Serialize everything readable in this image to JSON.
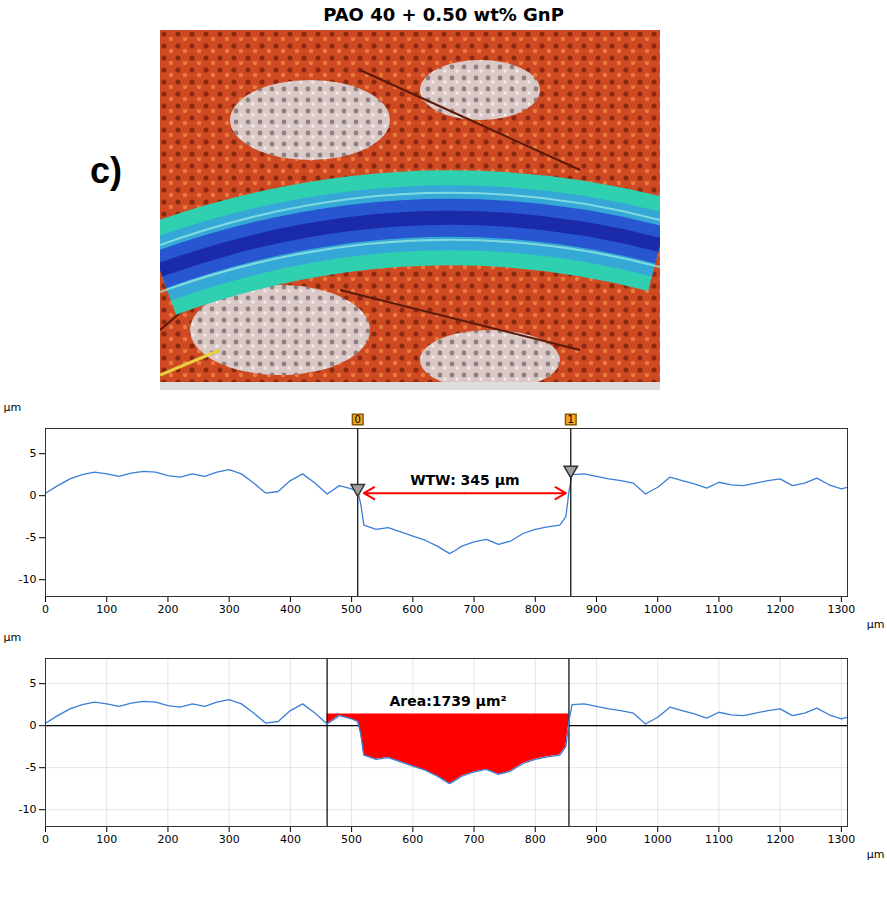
{
  "title": "PAO 40 + 0.50 wt% GnP",
  "panel": "c)",
  "chart_data": [
    {
      "type": "line",
      "x_label": "µm",
      "y_label": "µm",
      "color": "#3a7fd5",
      "grid": false,
      "xlim": [
        0,
        1310
      ],
      "ylim": [
        -12,
        8
      ],
      "xticks": [
        0,
        100,
        200,
        300,
        400,
        500,
        600,
        700,
        800,
        900,
        1000,
        1100,
        1200,
        1300
      ],
      "yticks": [
        -10,
        -5,
        0,
        5
      ],
      "x": [
        0,
        20,
        40,
        60,
        80,
        100,
        120,
        140,
        160,
        180,
        200,
        220,
        240,
        260,
        280,
        300,
        320,
        340,
        360,
        380,
        400,
        420,
        440,
        460,
        480,
        500,
        510,
        515,
        520,
        540,
        560,
        580,
        600,
        620,
        640,
        660,
        670,
        680,
        700,
        720,
        740,
        760,
        780,
        800,
        820,
        840,
        850,
        855,
        860,
        880,
        900,
        920,
        940,
        960,
        980,
        1000,
        1020,
        1040,
        1060,
        1080,
        1100,
        1120,
        1140,
        1160,
        1180,
        1200,
        1220,
        1240,
        1260,
        1280,
        1300,
        1310
      ],
      "values": [
        0.3,
        1.2,
        2.0,
        2.5,
        2.8,
        2.6,
        2.3,
        2.7,
        2.9,
        2.8,
        2.4,
        2.2,
        2.6,
        2.3,
        2.8,
        3.1,
        2.6,
        1.5,
        0.3,
        0.5,
        1.8,
        2.6,
        1.5,
        0.2,
        1.2,
        0.8,
        0.5,
        -1.0,
        -3.5,
        -4.0,
        -3.8,
        -4.3,
        -4.8,
        -5.3,
        -6.0,
        -6.9,
        -6.5,
        -6.0,
        -5.5,
        -5.2,
        -5.8,
        -5.4,
        -4.5,
        -4.0,
        -3.7,
        -3.5,
        -2.5,
        0.5,
        2.5,
        2.6,
        2.3,
        2.0,
        1.8,
        1.5,
        0.2,
        1.0,
        2.2,
        1.8,
        1.4,
        0.9,
        1.6,
        1.3,
        1.2,
        1.5,
        1.8,
        2.0,
        1.2,
        1.5,
        2.1,
        1.3,
        0.8,
        1.0
      ],
      "cursors": [
        {
          "label": "0",
          "x": 510,
          "y": 0.5
        },
        {
          "label": "1",
          "x": 858,
          "y": 2.7
        }
      ],
      "annotation": {
        "text": "WTW: 345 µm",
        "x0": 520,
        "x1": 850,
        "y": 0.3,
        "color": "#ff0000"
      }
    },
    {
      "type": "line",
      "x_label": "µm",
      "y_label": "µm",
      "color": "#3a7fd5",
      "grid": true,
      "xlim": [
        0,
        1310
      ],
      "ylim": [
        -12,
        8
      ],
      "xticks": [
        0,
        100,
        200,
        300,
        400,
        500,
        600,
        700,
        800,
        900,
        1000,
        1100,
        1200,
        1300
      ],
      "yticks": [
        -10,
        -5,
        0,
        5
      ],
      "x": [
        0,
        20,
        40,
        60,
        80,
        100,
        120,
        140,
        160,
        180,
        200,
        220,
        240,
        260,
        280,
        300,
        320,
        340,
        360,
        380,
        400,
        420,
        440,
        460,
        480,
        500,
        510,
        515,
        520,
        540,
        560,
        580,
        600,
        620,
        640,
        660,
        670,
        680,
        700,
        720,
        740,
        760,
        780,
        800,
        820,
        840,
        850,
        855,
        860,
        880,
        900,
        920,
        940,
        960,
        980,
        1000,
        1020,
        1040,
        1060,
        1080,
        1100,
        1120,
        1140,
        1160,
        1180,
        1200,
        1220,
        1240,
        1260,
        1280,
        1300,
        1310
      ],
      "values": [
        0.3,
        1.2,
        2.0,
        2.5,
        2.8,
        2.6,
        2.3,
        2.7,
        2.9,
        2.8,
        2.4,
        2.2,
        2.6,
        2.3,
        2.8,
        3.1,
        2.6,
        1.5,
        0.3,
        0.5,
        1.8,
        2.6,
        1.5,
        0.2,
        1.2,
        0.8,
        0.5,
        -1.0,
        -3.5,
        -4.0,
        -3.8,
        -4.3,
        -4.8,
        -5.3,
        -6.0,
        -6.9,
        -6.5,
        -6.0,
        -5.5,
        -5.2,
        -5.8,
        -5.4,
        -4.5,
        -4.0,
        -3.7,
        -3.5,
        -2.5,
        0.5,
        2.5,
        2.6,
        2.3,
        2.0,
        1.8,
        1.5,
        0.2,
        1.0,
        2.2,
        1.8,
        1.4,
        0.9,
        1.6,
        1.3,
        1.2,
        1.5,
        1.8,
        2.0,
        1.2,
        1.5,
        2.1,
        1.3,
        0.8,
        1.0
      ],
      "reference_y": 0,
      "area": {
        "label": "Area:1739 µm²",
        "x0": 460,
        "x1": 855,
        "baseline": 1.4,
        "color": "#ff0000"
      }
    }
  ]
}
